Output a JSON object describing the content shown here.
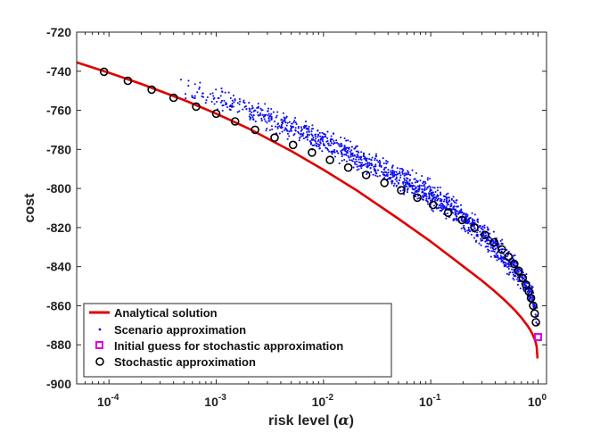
{
  "chart_data": {
    "type": "line",
    "xscale": "log",
    "xlabel_main": "risk level (",
    "xlabel_symbol": "α",
    "xlabel_close": ")",
    "ylabel": "cost",
    "xlim": [
      5e-05,
      1.2
    ],
    "ylim": [
      -900,
      -720
    ],
    "xticks": [
      {
        "value": 0.0001,
        "base": "10",
        "exp": "-4"
      },
      {
        "value": 0.001,
        "base": "10",
        "exp": "-3"
      },
      {
        "value": 0.01,
        "base": "10",
        "exp": "-2"
      },
      {
        "value": 0.1,
        "base": "10",
        "exp": "-1"
      },
      {
        "value": 1,
        "base": "10",
        "exp": "0"
      }
    ],
    "yticks": [
      -720,
      -740,
      -760,
      -780,
      -800,
      -820,
      -840,
      -860,
      -880,
      -900
    ],
    "legend_position": "bottom-left",
    "series": [
      {
        "name": "Analytical solution",
        "style": "line",
        "color": "#e00000",
        "x": [
          5e-05,
          0.0001,
          0.0002,
          0.0005,
          0.001,
          0.002,
          0.005,
          0.01,
          0.02,
          0.05,
          0.1,
          0.2,
          0.3,
          0.4,
          0.5,
          0.6,
          0.7,
          0.8,
          0.85,
          0.9,
          0.93,
          0.95,
          0.97,
          0.99
        ],
        "y": [
          -735.5,
          -740.8,
          -746.5,
          -754.7,
          -761.7,
          -769.3,
          -780.8,
          -790.4,
          -800.7,
          -815.5,
          -827.2,
          -839.8,
          -847.2,
          -852.9,
          -857.7,
          -862.0,
          -866.1,
          -870.3,
          -872.6,
          -875.3,
          -877.2,
          -878.7,
          -880.7,
          -887.0
        ]
      },
      {
        "name": "Scenario approximation",
        "style": "scatter",
        "color": "#1010ee",
        "x_range": [
          0.0004,
          1.0
        ],
        "trend_x": [
          0.0004,
          0.001,
          0.002,
          0.005,
          0.01,
          0.02,
          0.05,
          0.1,
          0.2,
          0.3,
          0.5,
          0.7,
          0.85,
          0.95,
          1.0
        ],
        "trend_y": [
          -747,
          -753,
          -760,
          -769,
          -776,
          -784,
          -795,
          -803,
          -815,
          -823,
          -835,
          -845,
          -854,
          -862,
          -868
        ],
        "spread": 5,
        "count": 1500
      },
      {
        "name": "Initial guess for stochastic approximation",
        "style": "marker-square",
        "color": "#e000e0",
        "x": [
          1.0
        ],
        "y": [
          -876
        ]
      },
      {
        "name": "Stochastic approximation",
        "style": "marker-circle",
        "color": "#000000",
        "x": [
          9e-05,
          0.00015,
          0.00025,
          0.0004,
          0.00065,
          0.001,
          0.0015,
          0.0023,
          0.0035,
          0.0052,
          0.0078,
          0.0115,
          0.017,
          0.025,
          0.037,
          0.053,
          0.075,
          0.105,
          0.145,
          0.195,
          0.255,
          0.32,
          0.39,
          0.46,
          0.53,
          0.6,
          0.66,
          0.72,
          0.77,
          0.82,
          0.86,
          0.9,
          0.93,
          0.955
        ],
        "y": [
          -740.3,
          -744.9,
          -749.4,
          -753.6,
          -758.1,
          -761.7,
          -765.7,
          -770.0,
          -774.0,
          -777.7,
          -781.6,
          -785.4,
          -789.3,
          -793.1,
          -797.1,
          -800.9,
          -804.7,
          -808.4,
          -812.4,
          -816.1,
          -820.0,
          -823.8,
          -827.6,
          -831.2,
          -834.9,
          -838.6,
          -842.1,
          -845.8,
          -849.2,
          -852.7,
          -856.1,
          -860.0,
          -864.0,
          -868.5
        ]
      }
    ]
  }
}
